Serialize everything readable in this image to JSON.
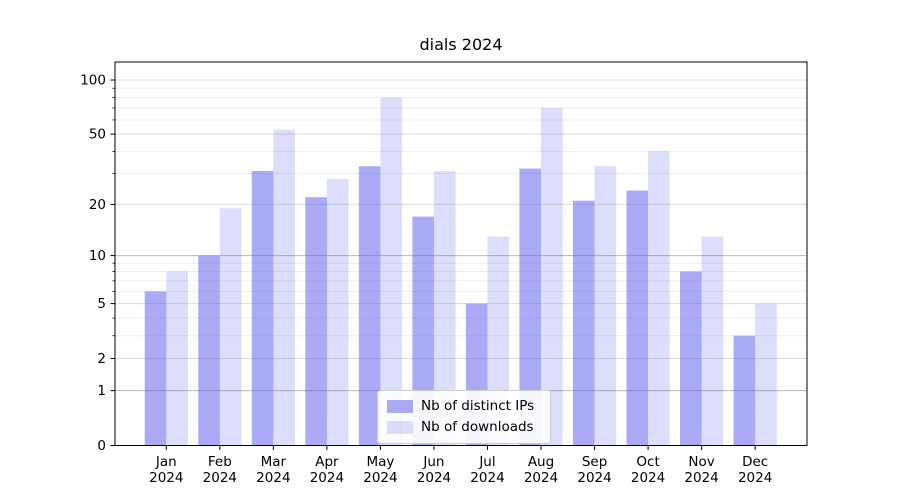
{
  "chart_data": {
    "type": "bar",
    "title": "dials 2024",
    "categories": [
      "Jan",
      "Feb",
      "Mar",
      "Apr",
      "May",
      "Jun",
      "Jul",
      "Aug",
      "Sep",
      "Oct",
      "Nov",
      "Dec"
    ],
    "x_year": "2024",
    "series": [
      {
        "name": "Nb of distinct IPs",
        "color": "rgba(85,85,238,0.5)",
        "values": [
          6,
          10,
          31,
          22,
          33,
          17,
          5,
          32,
          21,
          24,
          8,
          3
        ]
      },
      {
        "name": "Nb of downloads",
        "color": "rgba(85,85,238,0.2)",
        "values": [
          8,
          19,
          53,
          28,
          80,
          31,
          13,
          70,
          33,
          40,
          13,
          5
        ]
      }
    ],
    "yscale": "log1p",
    "ylim": [
      0,
      125.8
    ],
    "yticks": [
      100,
      50,
      20,
      10,
      5,
      2,
      1,
      0
    ],
    "minor_yticks": [
      3,
      4,
      6,
      7,
      8,
      9,
      30,
      40,
      60,
      70,
      80,
      90
    ],
    "grid": "on",
    "legend_position": "lower center inside",
    "colors": {
      "bar_base": "#5555ee",
      "major_grid": "#dcdcdc",
      "decade_grid": "#b9b9b9",
      "minor_grid": "#ededed",
      "spine": "#000000"
    }
  }
}
